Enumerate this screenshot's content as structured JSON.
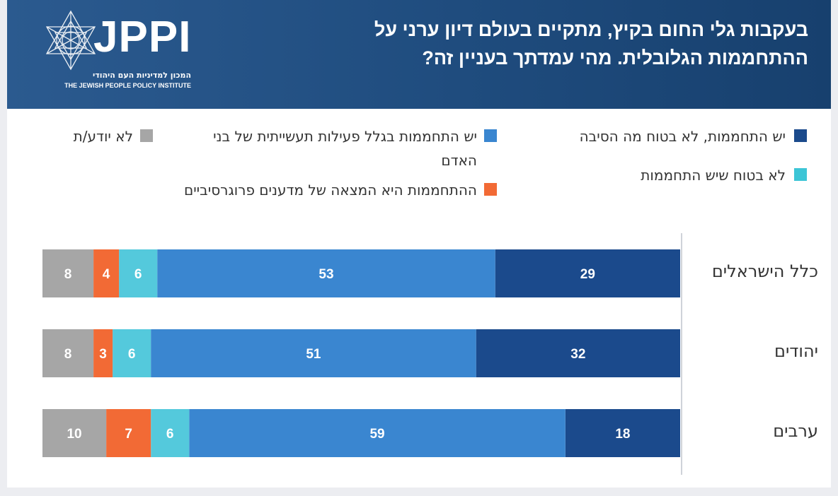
{
  "header": {
    "title": "בעקבות גלי החום בקיץ, מתקיים בעולם דיון ערני על ההתחממות הגלובלית. מהי עמדתך בעניין זה?",
    "logo_text": "JPPI",
    "logo_subtitle_he": "המכון למדיניות העם היהודי",
    "logo_subtitle_en": "THE JEWISH PEOPLE POLICY INSTITUTE"
  },
  "legend": [
    {
      "key": "warming_unsure_reason",
      "label": "יש התחממות, לא בטוח מה הסיבה",
      "color": "#1b4a8c"
    },
    {
      "key": "not_sure_warming",
      "label": "לא בטוח שיש התחממות",
      "color": "#3cc5d6"
    },
    {
      "key": "human_activity",
      "label": "יש התחממות בגלל פעילות תעשייתית של בני האדם",
      "color": "#3a86d0"
    },
    {
      "key": "progressive_invention",
      "label": "ההתחממות היא המצאה של מדענים פרוגרסיביים",
      "color": "#f26a35"
    },
    {
      "key": "dont_know",
      "label": "לא יודע/ת",
      "color": "#a6a6a6"
    }
  ],
  "chart_data": {
    "type": "bar",
    "orientation": "horizontal",
    "stacked": true,
    "categories": [
      "כלל הישראלים",
      "יהודים",
      "ערבים"
    ],
    "series": [
      {
        "name": "יש התחממות, לא בטוח מה הסיבה",
        "color": "#1b4a8c",
        "values": [
          29,
          32,
          18
        ]
      },
      {
        "name": "יש התחממות בגלל פעילות תעשייתית של בני האדם",
        "color": "#3a86d0",
        "values": [
          53,
          51,
          59
        ]
      },
      {
        "name": "לא בטוח שיש התחממות",
        "color": "#54c9dc",
        "values": [
          6,
          6,
          6
        ]
      },
      {
        "name": "ההתחממות היא המצאה של מדענים פרוגרסיביים",
        "color": "#f26a35",
        "values": [
          4,
          3,
          7
        ]
      },
      {
        "name": "לא יודע/ת",
        "color": "#a6a6a6",
        "values": [
          8,
          8,
          10
        ]
      }
    ],
    "stack_direction": "right-to-left",
    "xlim": [
      0,
      100
    ],
    "grid": false,
    "legend_position": "top"
  }
}
